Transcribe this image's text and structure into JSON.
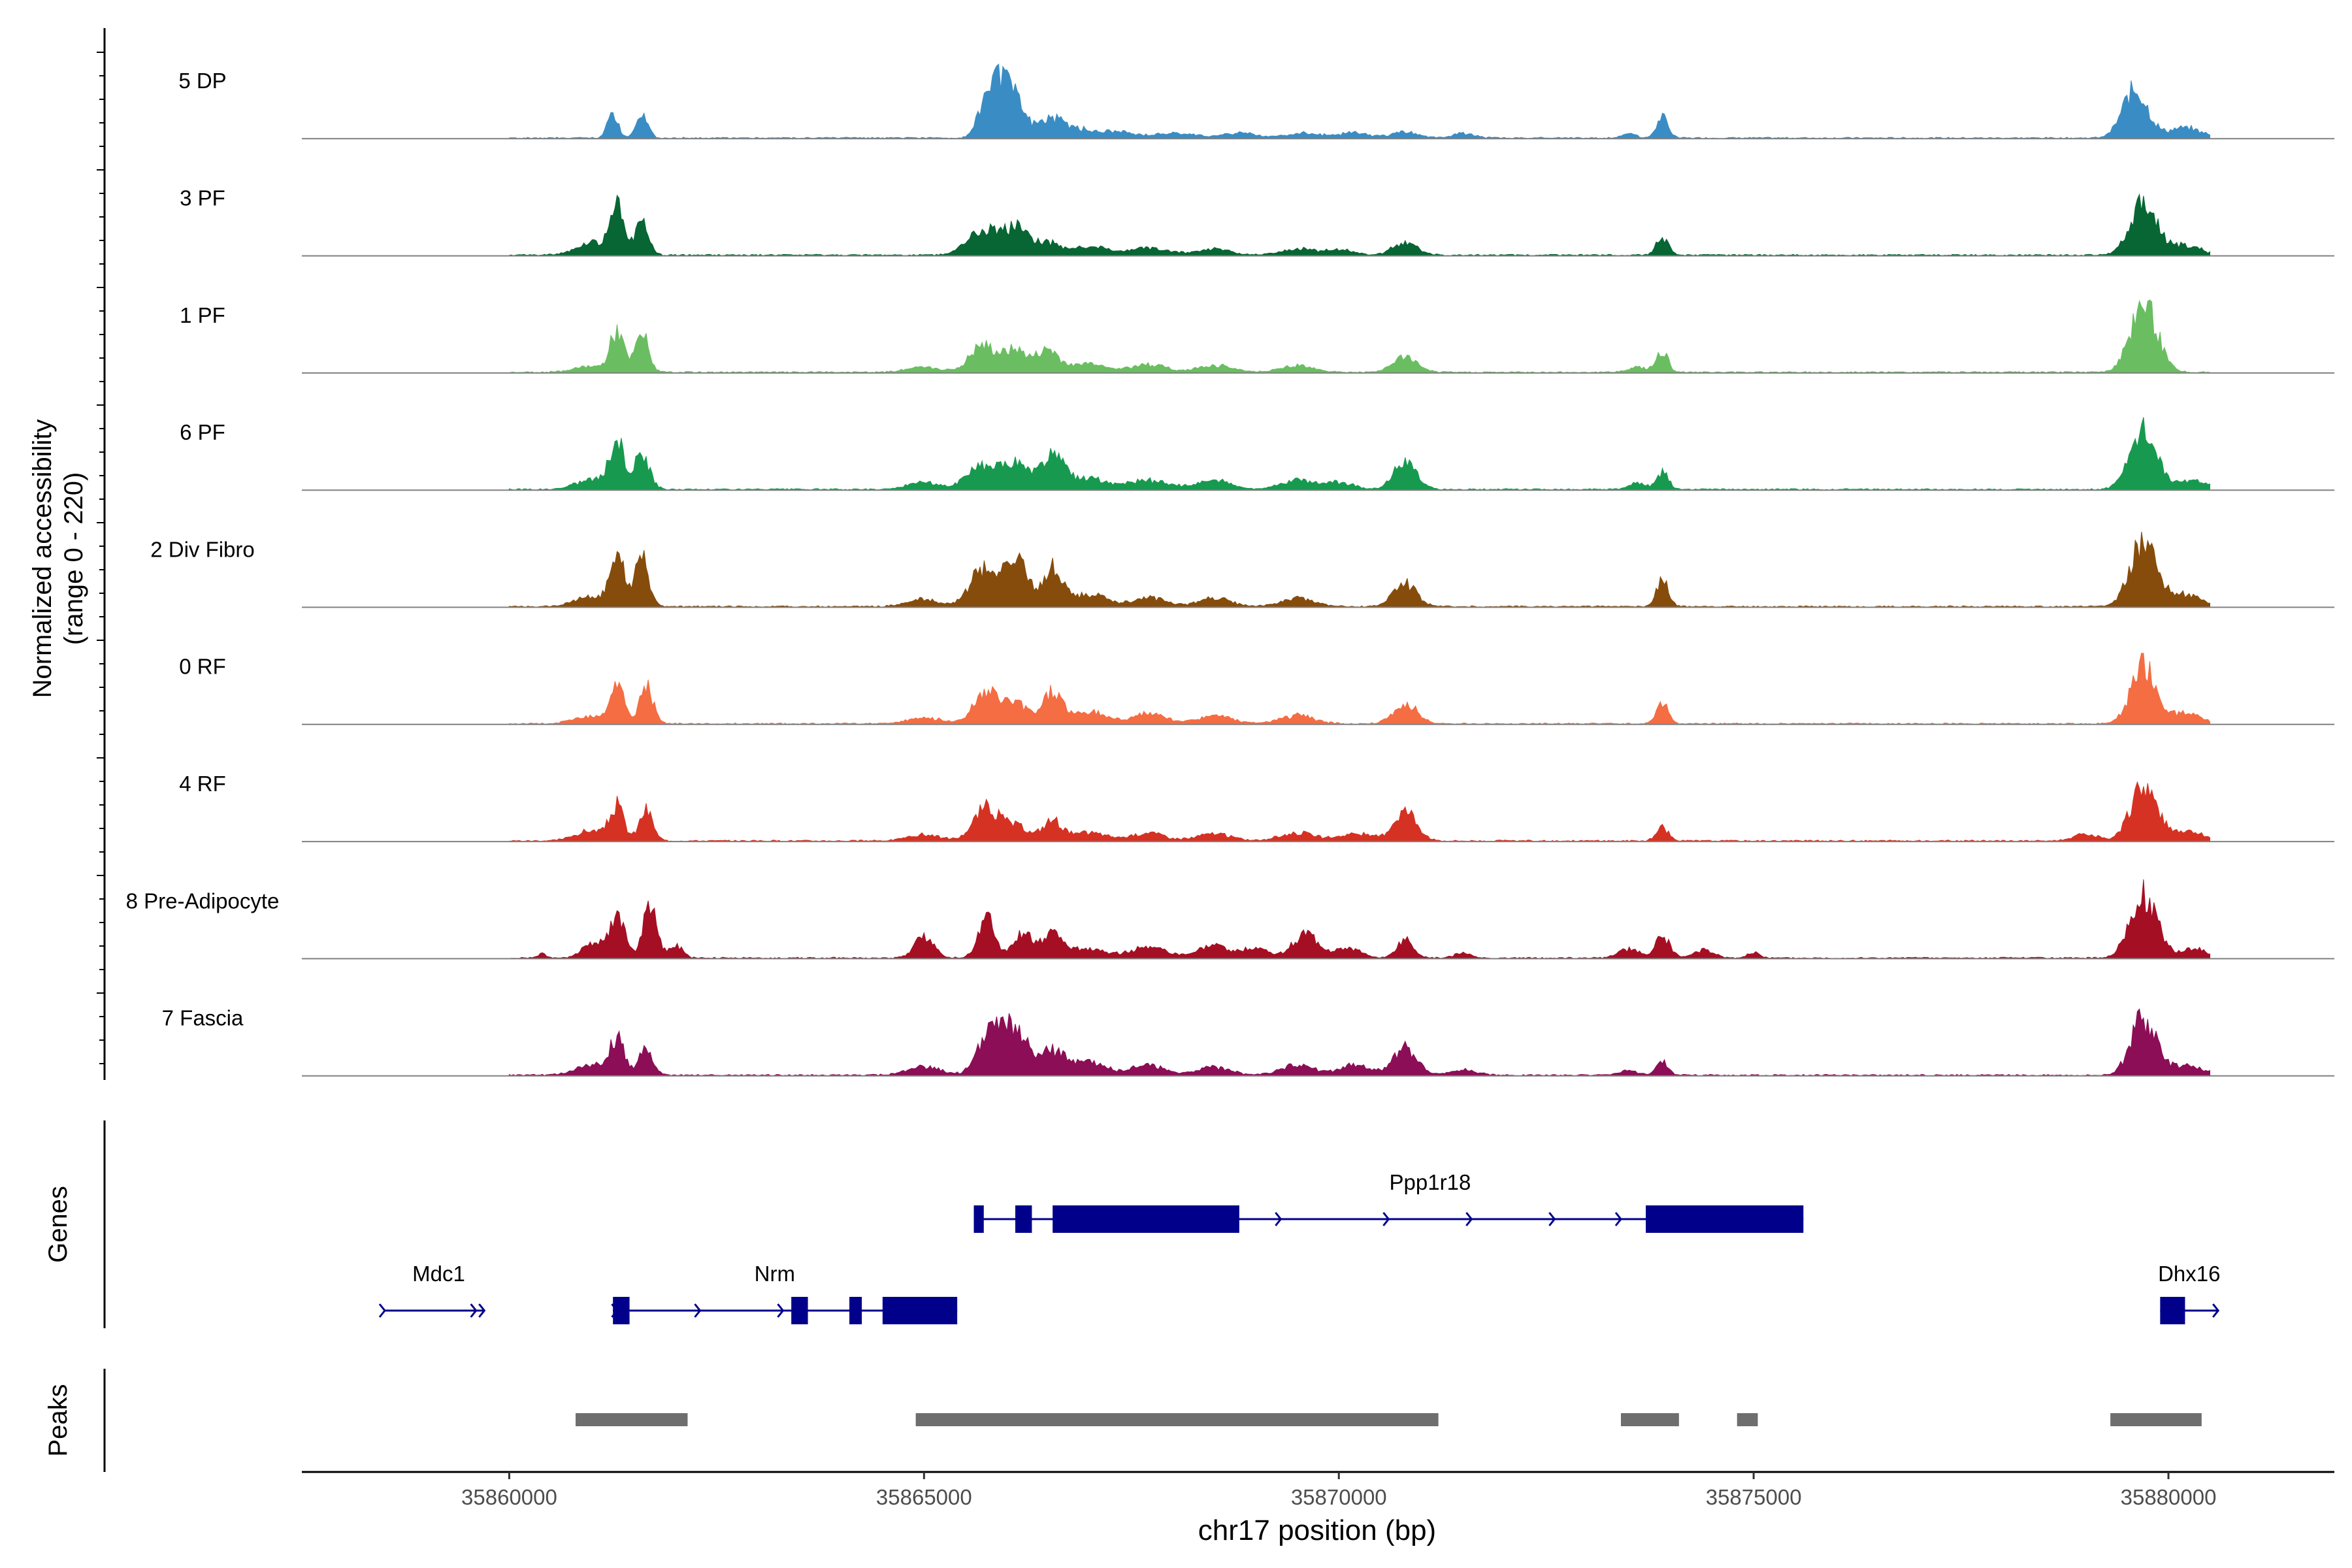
{
  "chart_data": {
    "type": "area",
    "title": "",
    "ylabel_line1": "Normalized accessibility",
    "ylabel_line2": "(range 0 - 220)",
    "y_range": [
      0,
      220
    ],
    "xlabel": "chr17 position (bp)",
    "x_range": [
      35857500,
      35882000
    ],
    "x_ticks": [
      35860000,
      35865000,
      35870000,
      35875000,
      35880000
    ],
    "x_tick_labels": [
      "35860000",
      "35865000",
      "35870000",
      "35875000",
      "35880000"
    ],
    "signal_extent": [
      35860000,
      35880500
    ],
    "tracks": [
      {
        "name": "5 DP",
        "color": "#3a8dc4",
        "baseline": 1.5,
        "peaks": [
          [
            35861250,
            26,
            60
          ],
          [
            35861600,
            22,
            70
          ],
          [
            35865800,
            48,
            120
          ],
          [
            35866050,
            44,
            140
          ],
          [
            35866500,
            16,
            150
          ],
          [
            35866800,
            9,
            200
          ],
          [
            35867300,
            6,
            200
          ],
          [
            35868000,
            5,
            250
          ],
          [
            35868800,
            5,
            200
          ],
          [
            35869600,
            5,
            220
          ],
          [
            35870200,
            5,
            160
          ],
          [
            35870800,
            6,
            160
          ],
          [
            35871500,
            5,
            120
          ],
          [
            35873500,
            5,
            80
          ],
          [
            35873900,
            20,
            70
          ],
          [
            35879600,
            48,
            150
          ],
          [
            35880200,
            10,
            200
          ]
        ]
      },
      {
        "name": "3 PF",
        "color": "#076633",
        "baseline": 1.5,
        "peaks": [
          [
            35861000,
            12,
            200
          ],
          [
            35861300,
            44,
            80
          ],
          [
            35861600,
            36,
            80
          ],
          [
            35865700,
            24,
            180
          ],
          [
            35866100,
            26,
            150
          ],
          [
            35866500,
            12,
            150
          ],
          [
            35867000,
            8,
            200
          ],
          [
            35867700,
            7,
            250
          ],
          [
            35868500,
            6,
            200
          ],
          [
            35869500,
            6,
            200
          ],
          [
            35870000,
            5,
            180
          ],
          [
            35870800,
            13,
            140
          ],
          [
            35873900,
            18,
            70
          ],
          [
            35879700,
            50,
            160
          ],
          [
            35880200,
            10,
            180
          ]
        ]
      },
      {
        "name": "1 PF",
        "color": "#6abe61",
        "baseline": 1.5,
        "peaks": [
          [
            35861000,
            6,
            200
          ],
          [
            35861300,
            40,
            80
          ],
          [
            35861600,
            38,
            80
          ],
          [
            35865000,
            5,
            200
          ],
          [
            35865700,
            26,
            150
          ],
          [
            35866100,
            22,
            150
          ],
          [
            35866500,
            22,
            130
          ],
          [
            35867000,
            9,
            200
          ],
          [
            35867700,
            8,
            200
          ],
          [
            35868500,
            7,
            200
          ],
          [
            35869500,
            7,
            200
          ],
          [
            35870800,
            16,
            140
          ],
          [
            35873600,
            5,
            120
          ],
          [
            35873900,
            20,
            70
          ],
          [
            35879700,
            68,
            160
          ]
        ]
      },
      {
        "name": "6 PF",
        "color": "#179a4f",
        "baseline": 1.5,
        "peaks": [
          [
            35861000,
            10,
            200
          ],
          [
            35861300,
            44,
            90
          ],
          [
            35861600,
            36,
            90
          ],
          [
            35865000,
            7,
            200
          ],
          [
            35865700,
            22,
            180
          ],
          [
            35866100,
            24,
            150
          ],
          [
            35866550,
            32,
            150
          ],
          [
            35867000,
            10,
            200
          ],
          [
            35867700,
            9,
            250
          ],
          [
            35868500,
            9,
            200
          ],
          [
            35869500,
            9,
            200
          ],
          [
            35870000,
            7,
            180
          ],
          [
            35870800,
            26,
            140
          ],
          [
            35873600,
            6,
            100
          ],
          [
            35873900,
            18,
            70
          ],
          [
            35879700,
            60,
            160
          ],
          [
            35880300,
            8,
            200
          ]
        ]
      },
      {
        "name": "2 Div Fibro",
        "color": "#864c0b",
        "baseline": 1.5,
        "peaks": [
          [
            35861000,
            10,
            200
          ],
          [
            35861300,
            56,
            80
          ],
          [
            35861600,
            50,
            80
          ],
          [
            35865000,
            7,
            200
          ],
          [
            35865700,
            36,
            150
          ],
          [
            35866100,
            48,
            140
          ],
          [
            35866550,
            40,
            120
          ],
          [
            35867000,
            12,
            200
          ],
          [
            35867700,
            9,
            200
          ],
          [
            35868500,
            8,
            200
          ],
          [
            35869500,
            8,
            200
          ],
          [
            35870800,
            22,
            140
          ],
          [
            35873900,
            26,
            70
          ],
          [
            35879700,
            64,
            160
          ],
          [
            35880200,
            12,
            180
          ]
        ]
      },
      {
        "name": "0 RF",
        "color": "#f46d43",
        "baseline": 1.5,
        "peaks": [
          [
            35861000,
            8,
            200
          ],
          [
            35861300,
            40,
            80
          ],
          [
            35861650,
            38,
            80
          ],
          [
            35865000,
            6,
            200
          ],
          [
            35865750,
            30,
            150
          ],
          [
            35866100,
            20,
            150
          ],
          [
            35866550,
            32,
            120
          ],
          [
            35867000,
            12,
            200
          ],
          [
            35867700,
            10,
            200
          ],
          [
            35868500,
            8,
            200
          ],
          [
            35869500,
            8,
            200
          ],
          [
            35870800,
            20,
            140
          ],
          [
            35873900,
            20,
            70
          ],
          [
            35879700,
            56,
            150
          ],
          [
            35880200,
            10,
            200
          ]
        ]
      },
      {
        "name": "4 RF",
        "color": "#d53223",
        "baseline": 1.5,
        "peaks": [
          [
            35861000,
            10,
            200
          ],
          [
            35861300,
            32,
            80
          ],
          [
            35861650,
            30,
            80
          ],
          [
            35865000,
            6,
            200
          ],
          [
            35865750,
            32,
            150
          ],
          [
            35866100,
            14,
            150
          ],
          [
            35866550,
            20,
            120
          ],
          [
            35867000,
            8,
            200
          ],
          [
            35867700,
            8,
            200
          ],
          [
            35868500,
            7,
            200
          ],
          [
            35869500,
            8,
            200
          ],
          [
            35870200,
            7,
            200
          ],
          [
            35870800,
            30,
            140
          ],
          [
            35873900,
            14,
            70
          ],
          [
            35879000,
            6,
            150
          ],
          [
            35879700,
            56,
            150
          ],
          [
            35880200,
            10,
            200
          ]
        ]
      },
      {
        "name": "8 Pre-Adipocyte",
        "color": "#a50f24",
        "baseline": 1.5,
        "peaks": [
          [
            35859000,
            4,
            60
          ],
          [
            35859400,
            4,
            60
          ],
          [
            35860400,
            4,
            50
          ],
          [
            35861000,
            14,
            120
          ],
          [
            35861300,
            40,
            100
          ],
          [
            35861700,
            54,
            80
          ],
          [
            35862000,
            14,
            80
          ],
          [
            35865000,
            20,
            120
          ],
          [
            35865750,
            40,
            100
          ],
          [
            35866200,
            26,
            120
          ],
          [
            35866550,
            24,
            120
          ],
          [
            35867000,
            10,
            200
          ],
          [
            35867700,
            12,
            200
          ],
          [
            35868500,
            12,
            200
          ],
          [
            35869000,
            10,
            150
          ],
          [
            35869600,
            24,
            150
          ],
          [
            35870100,
            10,
            150
          ],
          [
            35870800,
            18,
            100
          ],
          [
            35871500,
            5,
            100
          ],
          [
            35873500,
            9,
            120
          ],
          [
            35873900,
            20,
            90
          ],
          [
            35874400,
            8,
            120
          ],
          [
            35875000,
            5,
            80
          ],
          [
            35879700,
            62,
            160
          ],
          [
            35880300,
            10,
            150
          ]
        ]
      },
      {
        "name": "7 Fascia",
        "color": "#8b0e56",
        "baseline": 1.5,
        "peaks": [
          [
            35861000,
            10,
            200
          ],
          [
            35861300,
            34,
            90
          ],
          [
            35861650,
            28,
            80
          ],
          [
            35865000,
            8,
            200
          ],
          [
            35865800,
            40,
            150
          ],
          [
            35866100,
            42,
            150
          ],
          [
            35866550,
            24,
            150
          ],
          [
            35867000,
            12,
            200
          ],
          [
            35867700,
            10,
            200
          ],
          [
            35868500,
            8,
            200
          ],
          [
            35869500,
            10,
            200
          ],
          [
            35870200,
            10,
            200
          ],
          [
            35870800,
            26,
            140
          ],
          [
            35871500,
            6,
            150
          ],
          [
            35873500,
            5,
            100
          ],
          [
            35873900,
            14,
            70
          ],
          [
            35879700,
            56,
            150
          ],
          [
            35880200,
            10,
            200
          ]
        ]
      }
    ],
    "genes_label": "Genes",
    "gene_color": "#00008b",
    "genes": [
      {
        "name": "Ppp1r18",
        "row": 0,
        "start": 35865600,
        "end": 35875600,
        "exons": [
          [
            35865600,
            35865720
          ],
          [
            35866100,
            35866300
          ],
          [
            35866550,
            35868800
          ],
          [
            35873700,
            35875600
          ]
        ],
        "arrows": [
          35867800,
          35869300,
          35870600,
          35871600,
          35872600,
          35873400
        ]
      },
      {
        "name": "Mdc1",
        "row": 1,
        "start": 35858500,
        "end": 35859700,
        "exons": [],
        "arrows": [
          35858500,
          35859600,
          35859700
        ]
      },
      {
        "name": "Nrm",
        "row": 1,
        "start": 35861250,
        "end": 35865400,
        "exons": [
          [
            35861250,
            35861450
          ],
          [
            35863400,
            35863600
          ],
          [
            35864100,
            35864250
          ],
          [
            35864500,
            35865400
          ]
        ],
        "arrows": [
          35861300,
          35862300,
          35863300
        ]
      },
      {
        "name": "Dhx16",
        "row": 1,
        "start": 35879900,
        "end": 35880600,
        "exons": [
          [
            35879900,
            35880200
          ]
        ],
        "arrows": [
          35880600
        ]
      }
    ],
    "peaks_label": "Peaks",
    "peak_color": "#6e6e6e",
    "peak_regions": [
      [
        35860800,
        35862150
      ],
      [
        35864900,
        35871200
      ],
      [
        35873400,
        35874100
      ],
      [
        35874800,
        35875050
      ],
      [
        35879300,
        35880400
      ]
    ]
  }
}
